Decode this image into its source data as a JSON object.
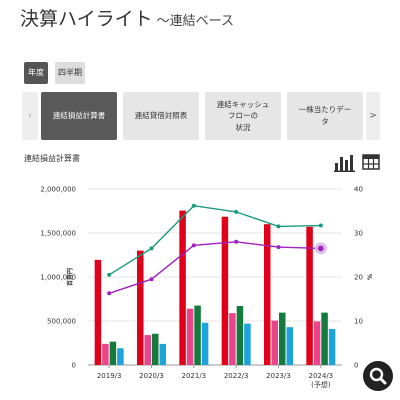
{
  "header": {
    "title": "決算ハイライト",
    "subtitle": "～連結ベース"
  },
  "period_tabs": [
    {
      "label": "年度",
      "active": true
    },
    {
      "label": "四半期",
      "active": false
    }
  ],
  "report_tabs": [
    {
      "label": "連結損益計算書",
      "active": true
    },
    {
      "label": "連結貸借対照表",
      "active": false
    },
    {
      "label": "連結キャッシュ\nフローの\n状況",
      "active": false
    },
    {
      "label": "一株当たりデー\nタ",
      "active": false
    }
  ],
  "carousel": {
    "prev_label": "‹",
    "next_label": ">"
  },
  "section": {
    "title": "連結損益計算書"
  },
  "icons": {
    "chart_view": "bar-chart-icon",
    "table_view": "table-icon",
    "zoom": "magnifier-icon"
  },
  "colors": {
    "series": [
      "#e0001a",
      "#e8458a",
      "#157a3c",
      "#1ea4dc"
    ],
    "line_teal": "#1a9a80",
    "line_purple": "#a020c0"
  },
  "chart_data": {
    "type": "bar",
    "categories": [
      "2019/3",
      "2020/3",
      "2021/3",
      "2022/3",
      "2023/3",
      "2024/3\n(予想)"
    ],
    "y_left": {
      "label": "百万円",
      "min": 0,
      "max": 2000000,
      "ticks": [
        "0",
        "500,000",
        "1,000,000",
        "1,500,000",
        "2,000,000"
      ]
    },
    "y_right": {
      "label": "%",
      "min": 0,
      "max": 40,
      "ticks": [
        "0",
        "10",
        "20",
        "30",
        "40"
      ]
    },
    "series": [
      {
        "values": [
          1195000,
          1300000,
          1755000,
          1685000,
          1600000,
          1570000
        ]
      },
      {
        "values": [
          240000,
          340000,
          640000,
          590000,
          505000,
          495000
        ]
      },
      {
        "values": [
          265000,
          355000,
          675000,
          670000,
          595000,
          595000
        ]
      },
      {
        "values": [
          190000,
          240000,
          480000,
          470000,
          430000,
          410000
        ]
      }
    ],
    "lines": [
      {
        "values": [
          20.5,
          26.5,
          36.2,
          34.8,
          31.5,
          31.7
        ]
      },
      {
        "values": [
          16.3,
          19.5,
          27.2,
          28.0,
          26.8,
          26.5
        ]
      }
    ]
  }
}
